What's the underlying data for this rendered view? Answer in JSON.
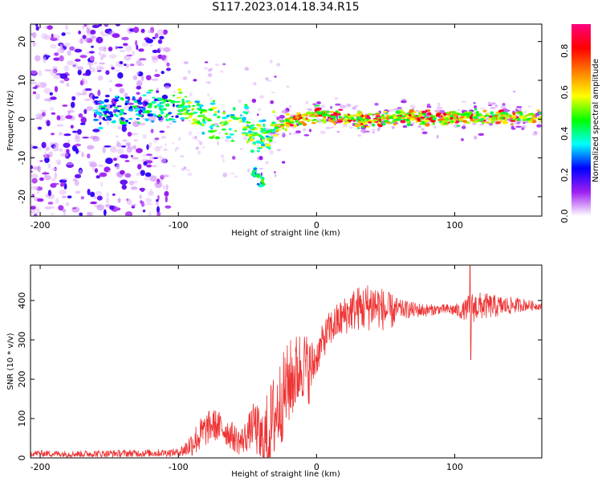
{
  "page": {
    "title": "S117.2023.014.18.34.R15"
  },
  "chart_data": [
    {
      "type": "heatmap",
      "title": "S117.2023.014.18.34.R15",
      "xlabel": "Height of straight line (km)",
      "ylabel": "Frequency (Hz)",
      "xlim": [
        -207,
        163
      ],
      "ylim": [
        -25,
        24.5
      ],
      "x_ticks": [
        -200,
        -100,
        0,
        100
      ],
      "y_ticks": [
        -20,
        -10,
        0,
        10,
        20
      ],
      "grid": false,
      "colorbar": {
        "label": "Normalized spectral amplitude",
        "range": [
          0,
          0.93
        ],
        "ticks": [
          0.0,
          0.2,
          0.4,
          0.6,
          0.8
        ],
        "colormap": [
          "#ffffff",
          "#a020f0",
          "#0000ff",
          "#00ffff",
          "#00ff00",
          "#ffff00",
          "#ff8000",
          "#ff0000",
          "#ff007f"
        ]
      },
      "ridge_line": {
        "x": [
          -155,
          -140,
          -120,
          -105,
          -90,
          -75,
          -65,
          -55,
          -45,
          -35,
          -25,
          -15,
          -5,
          0,
          5,
          10,
          20,
          40,
          60,
          80,
          100,
          120,
          140,
          163
        ],
        "y": [
          2,
          2,
          3,
          3,
          2,
          -1,
          -2,
          1,
          -4,
          -5,
          -1,
          0,
          0,
          1.5,
          1,
          0.5,
          0,
          0,
          0.5,
          0.5,
          0.5,
          0.5,
          0.5,
          0.5
        ]
      },
      "secondary_feature": {
        "x": [
          -45,
          -42,
          -39
        ],
        "y": [
          -14,
          -15,
          -17
        ]
      }
    },
    {
      "type": "line",
      "xlabel": "Height of straight line (km)",
      "ylabel": "SNR (10 * v/v)",
      "xlim": [
        -207,
        163
      ],
      "ylim": [
        0,
        490
      ],
      "x_ticks": [
        -200,
        -100,
        0,
        100
      ],
      "y_ticks": [
        0,
        100,
        200,
        300,
        400
      ],
      "grid": false,
      "color": "#ee3333",
      "series": [
        {
          "x": [
            -207,
            -180,
            -150,
            -120,
            -100,
            -95,
            -90,
            -85,
            -80,
            -75,
            -70,
            -65,
            -60,
            -55,
            -50,
            -45,
            -40,
            -35,
            -30,
            -25,
            -20,
            -15,
            -10,
            -5,
            0,
            5,
            10,
            15,
            20,
            25,
            30,
            35,
            40,
            45,
            50,
            55,
            60,
            70,
            80,
            90,
            100,
            105,
            110,
            115,
            120,
            130,
            140,
            150,
            163
          ],
          "y": [
            12,
            10,
            11,
            12,
            14,
            22,
            38,
            55,
            72,
            85,
            78,
            68,
            52,
            40,
            60,
            90,
            35,
            55,
            110,
            150,
            190,
            215,
            240,
            220,
            255,
            300,
            330,
            345,
            360,
            375,
            380,
            380,
            390,
            385,
            372,
            372,
            378,
            376,
            375,
            378,
            376,
            372,
            380,
            384,
            386,
            385,
            387,
            389,
            385
          ]
        }
      ],
      "noise_amplitude": {
        "x": [
          -207,
          -100,
          -85,
          -55,
          -45,
          -35,
          -20,
          -5,
          0,
          20,
          40,
          55,
          60,
          90,
          105,
          112,
          163
        ],
        "amp": [
          8,
          10,
          45,
          35,
          55,
          120,
          110,
          85,
          45,
          50,
          65,
          45,
          25,
          12,
          20,
          40,
          8
        ]
      },
      "spike": {
        "x": 111,
        "peak": 490,
        "dip": 250
      }
    }
  ]
}
